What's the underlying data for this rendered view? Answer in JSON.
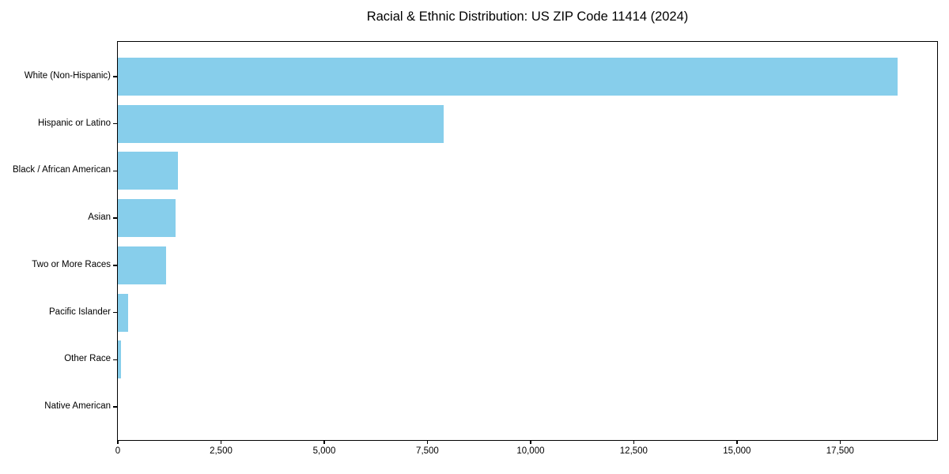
{
  "chart_data": {
    "type": "bar",
    "orientation": "horizontal",
    "title": "Racial & Ethnic Distribution: US ZIP Code 11414 (2024)",
    "categories": [
      "White (Non-Hispanic)",
      "Hispanic or Latino",
      "Black / African American",
      "Asian",
      "Two or More Races",
      "Pacific Islander",
      "Other Race",
      "Native American"
    ],
    "values": [
      18900,
      7900,
      1450,
      1400,
      1160,
      240,
      80,
      0
    ],
    "xlabel": "",
    "ylabel": "",
    "xlim": [
      0,
      19850
    ],
    "xticks": [
      0,
      2500,
      5000,
      7500,
      10000,
      12500,
      15000,
      17500
    ],
    "xtick_labels": [
      "0",
      "2,500",
      "5,000",
      "7,500",
      "10,000",
      "12,500",
      "15,000",
      "17,500"
    ],
    "bar_color": "#87CEEB",
    "frame_color": "#000000",
    "text_color": "#000000",
    "background_color": "#ffffff",
    "grid": false,
    "legend": null
  }
}
